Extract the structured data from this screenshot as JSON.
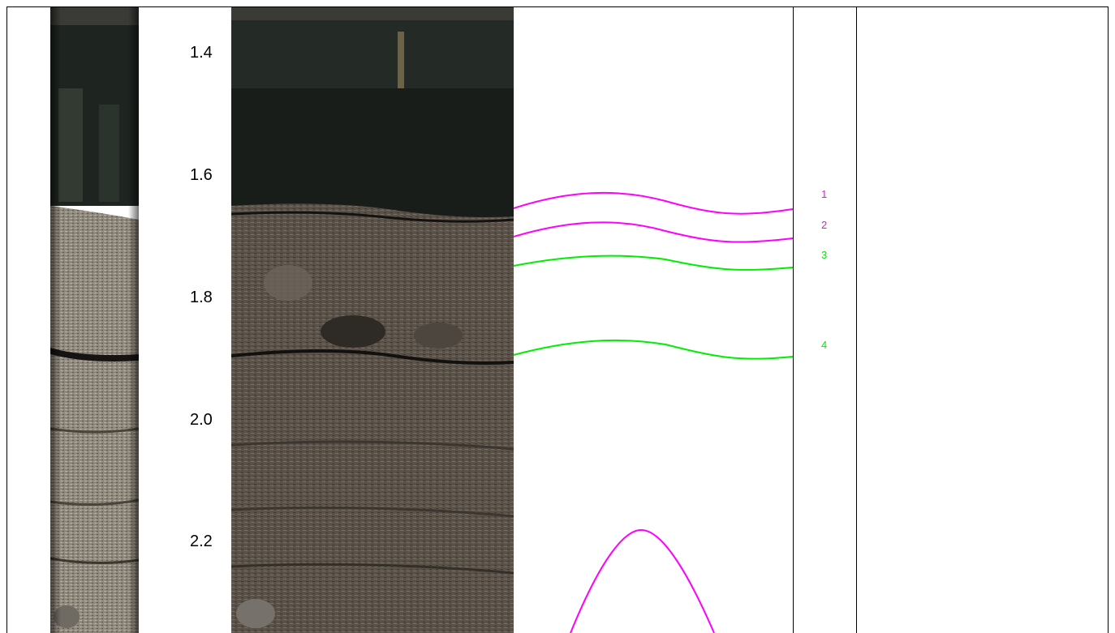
{
  "depth_labels": [
    "1.4",
    "1.6",
    "1.8",
    "2.0",
    "2.2"
  ],
  "markers": [
    {
      "label": "1",
      "color": "#ff00ff"
    },
    {
      "label": "2",
      "color": "#ff00ff"
    },
    {
      "label": "3",
      "color": "#00ee00"
    },
    {
      "label": "4",
      "color": "#00ee00"
    }
  ],
  "colors": {
    "magenta_trace": "#ff00ff",
    "green_trace": "#00ee00",
    "dark_rock": "#1f241f",
    "light_rock": "#8c8478",
    "mid_rock": "#5c554b"
  }
}
